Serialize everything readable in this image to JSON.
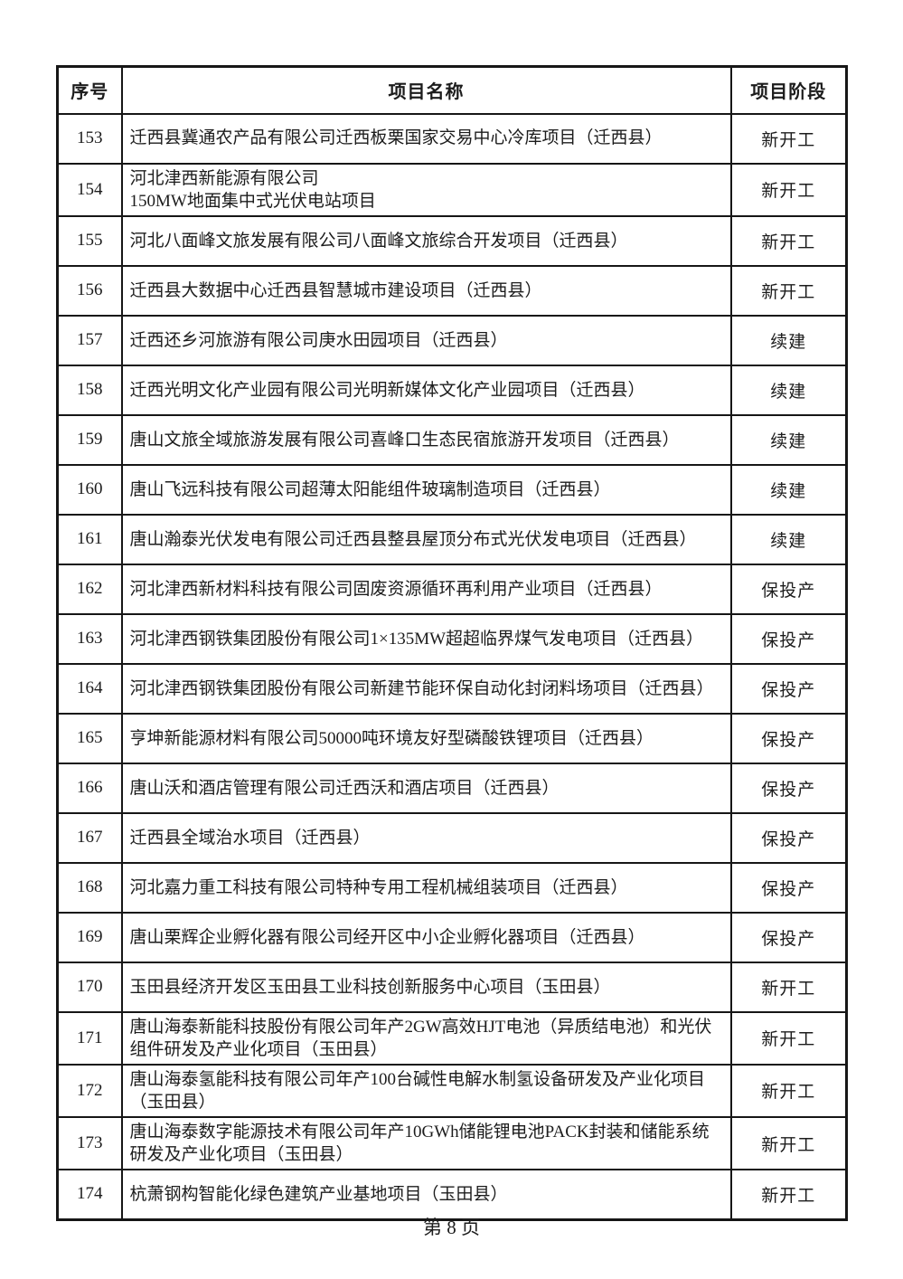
{
  "page": {
    "footer": "第 8 页"
  },
  "table": {
    "headers": {
      "no": "序号",
      "name": "项目名称",
      "stage": "项目阶段"
    },
    "rows": [
      {
        "no": "153",
        "name": "迁西县冀通农产品有限公司迁西板栗国家交易中心冷库项目（迁西县）",
        "stage": "新开工"
      },
      {
        "no": "154",
        "name": "河北津西新能源有限公司\n150MW地面集中式光伏电站项目",
        "stage": "新开工"
      },
      {
        "no": "155",
        "name": "河北八面峰文旅发展有限公司八面峰文旅综合开发项目（迁西县）",
        "stage": "新开工"
      },
      {
        "no": "156",
        "name": "迁西县大数据中心迁西县智慧城市建设项目（迁西县）",
        "stage": "新开工"
      },
      {
        "no": "157",
        "name": "迁西还乡河旅游有限公司庚水田园项目（迁西县）",
        "stage": "续建"
      },
      {
        "no": "158",
        "name": "迁西光明文化产业园有限公司光明新媒体文化产业园项目（迁西县）",
        "stage": "续建"
      },
      {
        "no": "159",
        "name": "唐山文旅全域旅游发展有限公司喜峰口生态民宿旅游开发项目（迁西县）",
        "stage": "续建"
      },
      {
        "no": "160",
        "name": "唐山飞远科技有限公司超薄太阳能组件玻璃制造项目（迁西县）",
        "stage": "续建"
      },
      {
        "no": "161",
        "name": "唐山瀚泰光伏发电有限公司迁西县整县屋顶分布式光伏发电项目（迁西县）",
        "stage": "续建"
      },
      {
        "no": "162",
        "name": "河北津西新材料科技有限公司固废资源循环再利用产业项目（迁西县）",
        "stage": "保投产"
      },
      {
        "no": "163",
        "name": "河北津西钢铁集团股份有限公司1×135MW超超临界煤气发电项目（迁西县）",
        "stage": "保投产"
      },
      {
        "no": "164",
        "name": "河北津西钢铁集团股份有限公司新建节能环保自动化封闭料场项目（迁西县）",
        "stage": "保投产"
      },
      {
        "no": "165",
        "name": "亨坤新能源材料有限公司50000吨环境友好型磷酸铁锂项目（迁西县）",
        "stage": "保投产"
      },
      {
        "no": "166",
        "name": "唐山沃和酒店管理有限公司迁西沃和酒店项目（迁西县）",
        "stage": "保投产"
      },
      {
        "no": "167",
        "name": "迁西县全域治水项目（迁西县）",
        "stage": "保投产"
      },
      {
        "no": "168",
        "name": "河北嘉力重工科技有限公司特种专用工程机械组装项目（迁西县）",
        "stage": "保投产"
      },
      {
        "no": "169",
        "name": "唐山栗辉企业孵化器有限公司经开区中小企业孵化器项目（迁西县）",
        "stage": "保投产"
      },
      {
        "no": "170",
        "name": "玉田县经济开发区玉田县工业科技创新服务中心项目（玉田县）",
        "stage": "新开工"
      },
      {
        "no": "171",
        "name": "唐山海泰新能科技股份有限公司年产2GW高效HJT电池（异质结电池）和光伏组件研发及产业化项目（玉田县）",
        "stage": "新开工"
      },
      {
        "no": "172",
        "name": "唐山海泰氢能科技有限公司年产100台碱性电解水制氢设备研发及产业化项目（玉田县）",
        "stage": "新开工"
      },
      {
        "no": "173",
        "name": "唐山海泰数字能源技术有限公司年产10GWh储能锂电池PACK封装和储能系统研发及产业化项目（玉田县）",
        "stage": "新开工"
      },
      {
        "no": "174",
        "name": "杭萧钢构智能化绿色建筑产业基地项目（玉田县）",
        "stage": "新开工"
      }
    ]
  }
}
